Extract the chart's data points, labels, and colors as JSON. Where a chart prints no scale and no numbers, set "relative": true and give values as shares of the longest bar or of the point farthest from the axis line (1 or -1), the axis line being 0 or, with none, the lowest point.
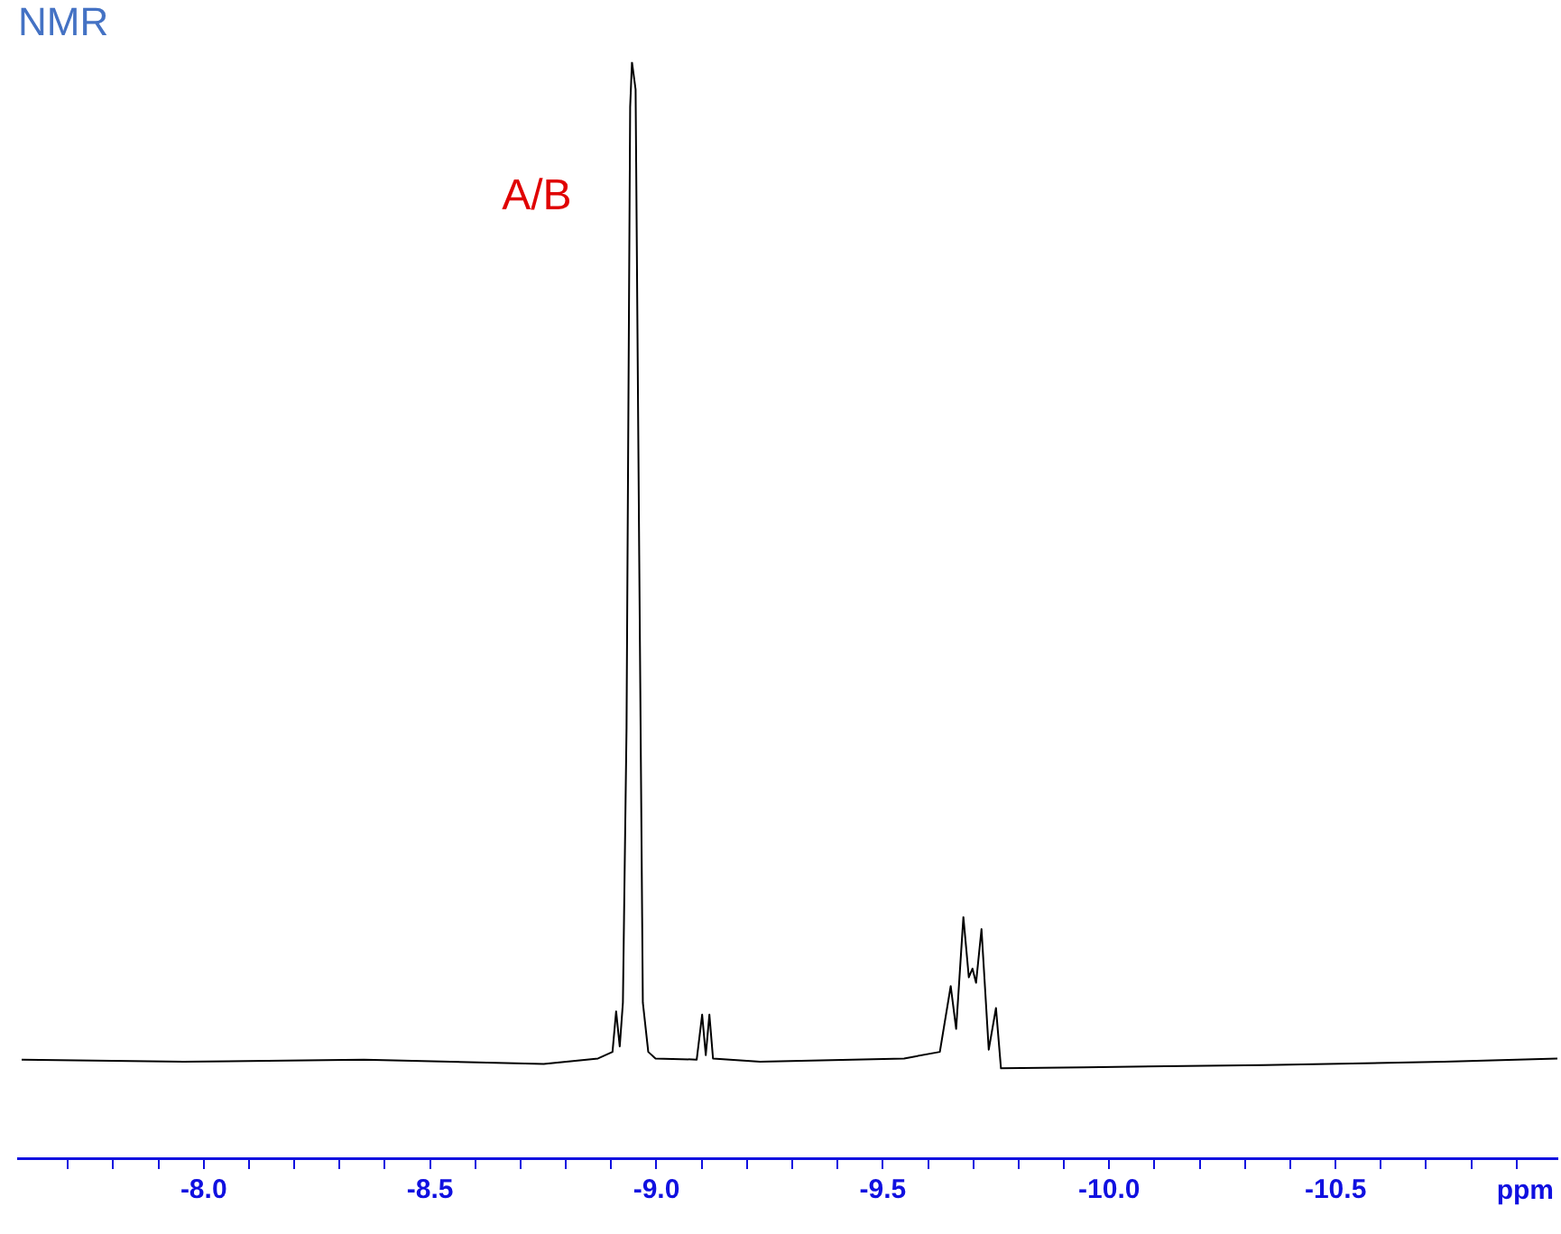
{
  "chart_data": {
    "type": "line",
    "title": "NMR",
    "xlabel": "ppm",
    "relative": true,
    "x": [
      -7.598,
      -7.956,
      -8.354,
      -8.751,
      -8.871,
      -8.903,
      -8.911,
      -8.919,
      -8.926,
      -8.934,
      -8.942,
      -8.946,
      -8.954,
      -8.962,
      -8.97,
      -8.982,
      -8.998,
      -9.089,
      -9.101,
      -9.109,
      -9.117,
      -9.125,
      -9.229,
      -9.547,
      -9.626,
      -9.65,
      -9.662,
      -9.678,
      -9.69,
      -9.698,
      -9.706,
      -9.718,
      -9.734,
      -9.75,
      -9.761,
      -9.944,
      -10.342,
      -10.74,
      -10.99
    ],
    "series": [
      {
        "color": "#000000",
        "values": [
          0.09,
          0.088,
          0.09,
          0.086,
          0.091,
          0.097,
          0.134,
          0.102,
          0.142,
          0.393,
          0.959,
          1,
          0.975,
          0.55,
          0.142,
          0.097,
          0.091,
          0.09,
          0.131,
          0.094,
          0.131,
          0.091,
          0.088,
          0.091,
          0.097,
          0.157,
          0.118,
          0.22,
          0.165,
          0.173,
          0.16,
          0.209,
          0.099,
          0.137,
          0.082,
          0.083,
          0.085,
          0.088,
          0.091
        ]
      }
    ],
    "xlim": [
      -7.59,
      -10.99
    ],
    "xticks": [
      {
        "value": -7.7,
        "label": null
      },
      {
        "value": -7.8,
        "label": null
      },
      {
        "value": -7.9,
        "label": null
      },
      {
        "value": -8.0,
        "label": "-8.0"
      },
      {
        "value": -8.1,
        "label": null
      },
      {
        "value": -8.2,
        "label": null
      },
      {
        "value": -8.3,
        "label": null
      },
      {
        "value": -8.4,
        "label": null
      },
      {
        "value": -8.5,
        "label": "-8.5"
      },
      {
        "value": -8.6,
        "label": null
      },
      {
        "value": -8.7,
        "label": null
      },
      {
        "value": -8.8,
        "label": null
      },
      {
        "value": -8.9,
        "label": null
      },
      {
        "value": -9.0,
        "label": "-9.0"
      },
      {
        "value": -9.1,
        "label": null
      },
      {
        "value": -9.2,
        "label": null
      },
      {
        "value": -9.3,
        "label": null
      },
      {
        "value": -9.4,
        "label": null
      },
      {
        "value": -9.5,
        "label": "-9.5"
      },
      {
        "value": -9.6,
        "label": null
      },
      {
        "value": -9.7,
        "label": null
      },
      {
        "value": -9.8,
        "label": null
      },
      {
        "value": -9.9,
        "label": null
      },
      {
        "value": -10.0,
        "label": "-10.0"
      },
      {
        "value": -10.1,
        "label": null
      },
      {
        "value": -10.2,
        "label": null
      },
      {
        "value": -10.3,
        "label": null
      },
      {
        "value": -10.4,
        "label": null
      },
      {
        "value": -10.5,
        "label": "-10.5"
      },
      {
        "value": -10.6,
        "label": null
      },
      {
        "value": -10.7,
        "label": null
      },
      {
        "value": -10.8,
        "label": null
      },
      {
        "value": -10.9,
        "label": null
      }
    ],
    "tick_labels": "x",
    "grid": false,
    "legend": false,
    "marker": "none",
    "line_style": "solid",
    "annotations": [
      "A/B"
    ]
  }
}
